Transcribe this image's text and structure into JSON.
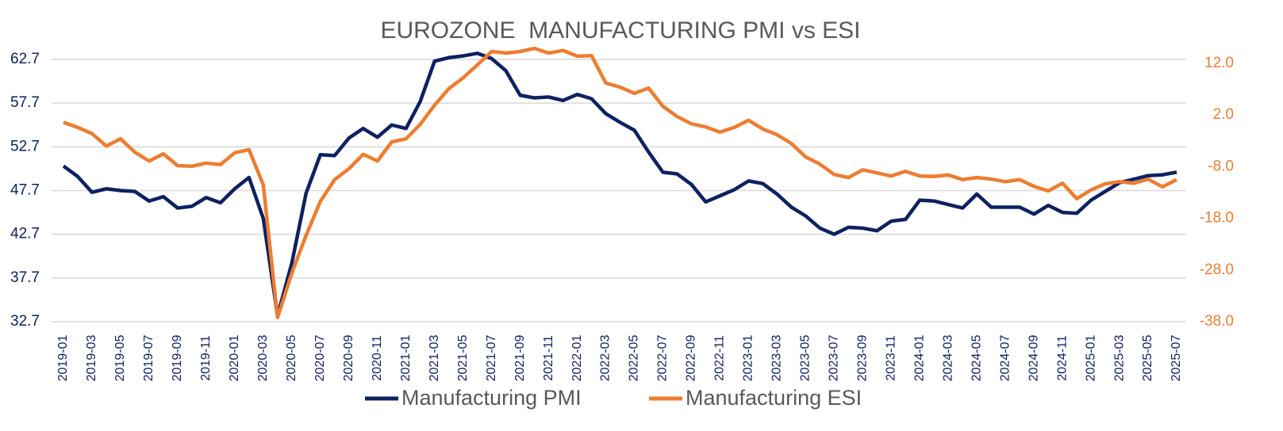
{
  "chart_data": {
    "type": "line",
    "title": "EUROZONE  MANUFACTURING PMI vs ESI",
    "categories": [
      "2019-01",
      null,
      "2019-03",
      null,
      "2019-05",
      null,
      "2019-07",
      null,
      "2019-09",
      null,
      "2019-11",
      null,
      "2020-01",
      null,
      "2020-03",
      null,
      "2020-05",
      null,
      "2020-07",
      null,
      "2020-09",
      null,
      "2020-11",
      null,
      "2021-01",
      null,
      "2021-03",
      null,
      "2021-05",
      null,
      "2021-07",
      null,
      "2021-09",
      null,
      "2021-11",
      null,
      "2022-01",
      null,
      "2022-03",
      null,
      "2022-05",
      null,
      "2022-07",
      null,
      "2022-09",
      null,
      "2022-11",
      null,
      "2023-01",
      null,
      "2023-03",
      null,
      "2023-05",
      null,
      "2023-07",
      null,
      "2023-09",
      null,
      "2023-11",
      null,
      "2024-01",
      null,
      "2024-03",
      null,
      "2024-05",
      null,
      "2024-07",
      null,
      "2024-09",
      null,
      "2024-11",
      null,
      "2025-01",
      null,
      "2025-03",
      null,
      "2025-05",
      null,
      "2025-07"
    ],
    "series": [
      {
        "name": "Manufacturing PMI",
        "color": "#0e2160",
        "axis": "y",
        "values": [
          50.5,
          49.3,
          47.5,
          47.9,
          47.7,
          47.6,
          46.5,
          47.0,
          45.7,
          45.9,
          46.9,
          46.3,
          47.9,
          49.2,
          44.5,
          33.4,
          39.4,
          47.4,
          51.8,
          51.7,
          53.7,
          54.8,
          53.8,
          55.2,
          54.8,
          57.9,
          62.5,
          62.9,
          63.1,
          63.4,
          62.8,
          61.4,
          58.6,
          58.3,
          58.4,
          58.0,
          58.7,
          58.2,
          56.5,
          55.5,
          54.6,
          52.1,
          49.8,
          49.6,
          48.4,
          46.4,
          47.1,
          47.8,
          48.8,
          48.5,
          47.3,
          45.8,
          44.8,
          43.4,
          42.7,
          43.5,
          43.4,
          43.1,
          44.2,
          44.4,
          46.6,
          46.5,
          46.1,
          45.7,
          47.3,
          45.8,
          45.8,
          45.8,
          45.0,
          46.0,
          45.2,
          45.1,
          46.6,
          47.6,
          48.6,
          49.0,
          49.4,
          49.5,
          49.8
        ]
      },
      {
        "name": "Manufacturing ESI",
        "color": "#ed7d31",
        "axis": "y2",
        "values": [
          0.6,
          -0.4,
          -1.6,
          -4.0,
          -2.6,
          -5.2,
          -6.9,
          -5.5,
          -7.8,
          -7.9,
          -7.3,
          -7.6,
          -5.3,
          -4.7,
          -11.5,
          -37.2,
          -28.6,
          -21.3,
          -14.7,
          -10.5,
          -8.4,
          -5.6,
          -6.9,
          -3.2,
          -2.6,
          0.2,
          3.9,
          7.1,
          9.2,
          11.7,
          14.3,
          14.0,
          14.3,
          14.9,
          14.0,
          14.5,
          13.4,
          13.5,
          8.2,
          7.4,
          6.2,
          7.2,
          3.7,
          1.7,
          0.3,
          -0.3,
          -1.3,
          -0.4,
          1.0,
          -0.7,
          -1.8,
          -3.5,
          -6.1,
          -7.5,
          -9.5,
          -10.1,
          -8.6,
          -9.2,
          -9.8,
          -8.9,
          -9.8,
          -9.9,
          -9.6,
          -10.5,
          -10.1,
          -10.4,
          -10.9,
          -10.5,
          -11.8,
          -12.7,
          -11.2,
          -14.2,
          -12.5,
          -11.3,
          -10.9,
          -11.2,
          -10.4,
          -11.9,
          -10.5
        ]
      }
    ],
    "ylim": [
      32.7,
      62.7
    ],
    "yticks": [
      32.7,
      37.7,
      42.7,
      47.7,
      52.7,
      57.7,
      62.7
    ],
    "y2lim": [
      -38,
      12
    ],
    "y2ticks": [
      {
        "value": -38,
        "label": "-38.0"
      },
      {
        "value": -28,
        "label": "-28.0"
      },
      {
        "value": -18,
        "label": "-18.0"
      },
      {
        "value": -8,
        "label": "-8.0"
      },
      {
        "value": 2,
        "label": "2.0"
      },
      {
        "value": 12,
        "label": "12.0"
      }
    ],
    "y2color": "#ed7d31",
    "grid": true,
    "legend": "bottom"
  }
}
